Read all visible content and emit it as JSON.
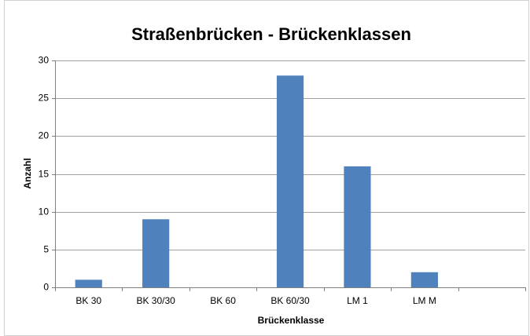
{
  "chart_data": {
    "type": "bar",
    "title": "Straßenbrücken - Brückenklassen",
    "x_label": "Brückenklasse",
    "y_label": "Anzahl",
    "categories": [
      "BK 30",
      "BK 30/30",
      "BK 60",
      "BK 60/30",
      "LM 1",
      "LM M",
      null
    ],
    "values": [
      1,
      9,
      0,
      28,
      16,
      2,
      null
    ],
    "color": "#4f81bd",
    "ylim": [
      0,
      30
    ],
    "yticks": [
      0,
      5,
      10,
      15,
      20,
      25,
      30
    ],
    "grid": true
  }
}
